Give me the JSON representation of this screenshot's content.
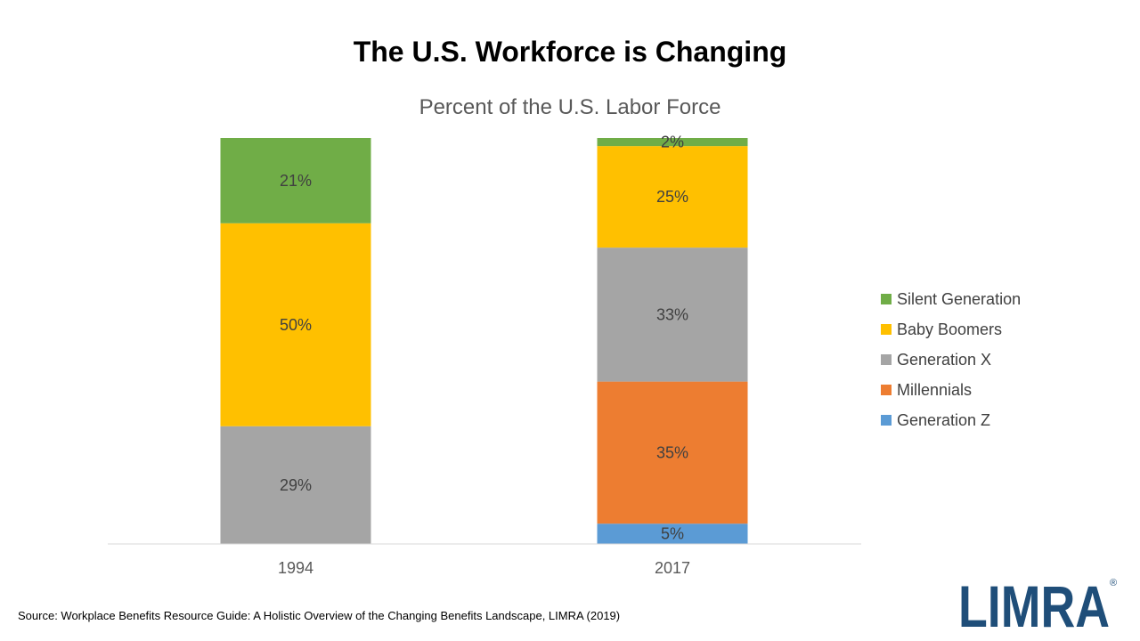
{
  "slide": {
    "title": "The U.S. Workforce is Changing",
    "source": "Source: Workplace Benefits Resource Guide: A Holistic Overview of the Changing Benefits Landscape, LIMRA (2019)"
  },
  "logo": {
    "text": "LIMRA",
    "registered": "®",
    "color": "#1F4E79"
  },
  "chart_data": {
    "type": "bar",
    "stacked": true,
    "title": "Percent of the U.S. Labor Force",
    "categories": [
      "1994",
      "2017"
    ],
    "ylim": [
      0,
      100
    ],
    "grid": false,
    "legend_position": "right",
    "series": [
      {
        "name": "Generation Z",
        "color": "#5B9BD5",
        "values": [
          null,
          5
        ],
        "labels": [
          "",
          "5%"
        ]
      },
      {
        "name": "Millennials",
        "color": "#ED7D31",
        "values": [
          null,
          35
        ],
        "labels": [
          "",
          "35%"
        ]
      },
      {
        "name": "Generation X",
        "color": "#A5A5A5",
        "values": [
          29,
          33
        ],
        "labels": [
          "29%",
          "33%"
        ]
      },
      {
        "name": "Baby Boomers",
        "color": "#FFC000",
        "values": [
          50,
          25
        ],
        "labels": [
          "50%",
          "25%"
        ]
      },
      {
        "name": "Silent Generation",
        "color": "#70AD47",
        "values": [
          21,
          2
        ],
        "labels": [
          "21%",
          "2%"
        ]
      }
    ]
  }
}
